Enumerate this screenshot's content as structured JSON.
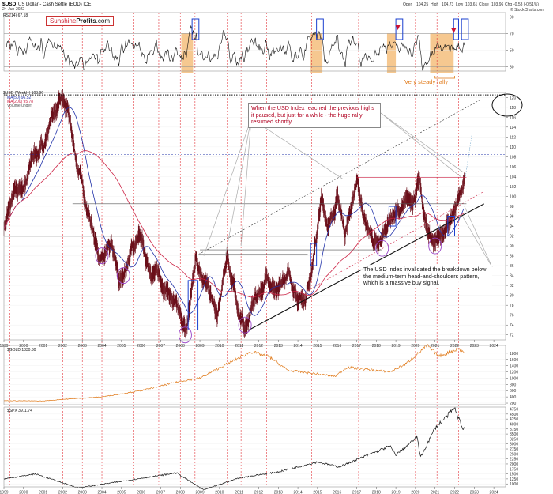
{
  "header": {
    "symbol": "$USD",
    "name": "US Dollar - Cash Settle (EOD) ICE",
    "date": "24-Jun-2022",
    "open_label": "Open",
    "open": "104.25",
    "high_label": "High",
    "high": "104.73",
    "low_label": "Low",
    "low": "103.61",
    "close_label": "Close",
    "close": "103.96",
    "chg_label": "Chg",
    "chg": "-0.53 (-0.51%)",
    "credit": "© StockCharts.com"
  },
  "logo": {
    "part1": "Sunshine",
    "part2": "Profits",
    "part3": ".com"
  },
  "colors": {
    "rsi": "#111111",
    "usd": "#6b0f1a",
    "ma50": "#2233aa",
    "ma200": "#cc2244",
    "gold": "#e07a1a",
    "spx": "#111111",
    "highlight": "#f3b56b",
    "annotation_red": "#b00020",
    "blue_box": "#1a3fcf"
  },
  "panels": {
    "rsi": {
      "label": "RSI(14) 67.18"
    },
    "usd": {
      "label": "$USD (Weekly) 103.96",
      "ma50": "MA(50) 96.52",
      "ma200": "MA(200) 95.78",
      "volume": "Volume undef"
    },
    "gold": {
      "label": "$GOLD 1830.30"
    },
    "spx": {
      "label": "$SPX 3911.74"
    }
  },
  "annotations": {
    "top": "When the USD Index reached the previous highs it paused, but just for a while - the huge rally resumed shortly.",
    "bottom": "The USD Index invalidated the breakdown below the medium-term head-and-shoulders pattern, which is a massive buy signal.",
    "steady": "Very steady rally"
  },
  "chart_data": [
    {
      "type": "line",
      "title": "RSI(14) 67.18",
      "yticks": [
        30,
        50,
        70,
        90
      ],
      "ylim": [
        25,
        95
      ]
    },
    {
      "type": "line",
      "title": "$USD (Weekly) 103.96",
      "x": [
        1999,
        2000,
        2001,
        2002,
        2003,
        2004,
        2005,
        2006,
        2007,
        2008,
        2009,
        2010,
        2011,
        2012,
        2013,
        2014,
        2015,
        2016,
        2017,
        2018,
        2019,
        2020,
        2021,
        2022,
        2023,
        2024
      ],
      "xtick_labels": [
        "1999",
        "2000",
        "2001",
        "2002",
        "2003",
        "2004",
        "2005",
        "2006",
        "2007",
        "2008",
        "2009",
        "2010",
        "2011",
        "2012",
        "2013",
        "2014",
        "2015",
        "2016",
        "2017",
        "2018",
        "2019",
        "2020",
        "2021",
        "2022",
        "2023",
        "2024"
      ],
      "yticks": [
        72,
        74,
        76,
        78,
        80,
        82,
        84,
        86,
        88,
        90,
        92,
        94,
        96,
        98,
        100,
        102,
        104,
        106,
        108,
        110,
        112,
        114,
        116,
        118,
        120
      ],
      "ylim": [
        71,
        121
      ],
      "series": [
        {
          "name": "$USD",
          "points": [
            [
              1999.0,
              94
            ],
            [
              1999.5,
              100
            ],
            [
              2000.0,
              102
            ],
            [
              2000.5,
              108
            ],
            [
              2001.0,
              110
            ],
            [
              2001.5,
              117
            ],
            [
              2002.0,
              119
            ],
            [
              2002.3,
              116
            ],
            [
              2002.7,
              107
            ],
            [
              2003.0,
              102
            ],
            [
              2003.5,
              94
            ],
            [
              2004.0,
              87
            ],
            [
              2004.5,
              89
            ],
            [
              2004.9,
              82
            ],
            [
              2005.5,
              89
            ],
            [
              2005.9,
              92
            ],
            [
              2006.3,
              86
            ],
            [
              2006.9,
              84
            ],
            [
              2007.4,
              81
            ],
            [
              2007.9,
              76
            ],
            [
              2008.3,
              72
            ],
            [
              2008.8,
              88
            ],
            [
              2009.2,
              84
            ],
            [
              2009.9,
              75
            ],
            [
              2010.4,
              88
            ],
            [
              2010.9,
              78
            ],
            [
              2011.3,
              73
            ],
            [
              2011.8,
              79
            ],
            [
              2012.5,
              84
            ],
            [
              2013.0,
              80
            ],
            [
              2013.5,
              84
            ],
            [
              2014.0,
              80
            ],
            [
              2014.4,
              80
            ],
            [
              2014.8,
              88
            ],
            [
              2015.2,
              99
            ],
            [
              2015.6,
              94
            ],
            [
              2016.0,
              100
            ],
            [
              2016.4,
              93
            ],
            [
              2017.0,
              103
            ],
            [
              2017.5,
              94
            ],
            [
              2018.1,
              89
            ],
            [
              2018.7,
              96
            ],
            [
              2019.2,
              97
            ],
            [
              2019.8,
              99
            ],
            [
              2020.2,
              103
            ],
            [
              2020.5,
              94
            ],
            [
              2020.9,
              91
            ],
            [
              2021.2,
              92
            ],
            [
              2021.7,
              94
            ],
            [
              2022.0,
              96
            ],
            [
              2022.3,
              100
            ],
            [
              2022.5,
              104
            ]
          ]
        },
        {
          "name": "MA(50) 96.52"
        },
        {
          "name": "MA(200) 95.78"
        }
      ]
    },
    {
      "type": "line",
      "title": "$GOLD 1830.30",
      "yticks": [
        200,
        400,
        600,
        800,
        1000,
        1200,
        1400,
        1600,
        1800
      ],
      "ylim": [
        150,
        2050
      ]
    },
    {
      "type": "line",
      "title": "$SPX 3911.74",
      "yticks": [
        1000,
        1250,
        1500,
        1750,
        2000,
        2250,
        2500,
        2750,
        3000,
        3250,
        3500,
        3750,
        4000,
        4250,
        4500,
        4750
      ],
      "ylim": [
        850,
        4850
      ]
    }
  ]
}
